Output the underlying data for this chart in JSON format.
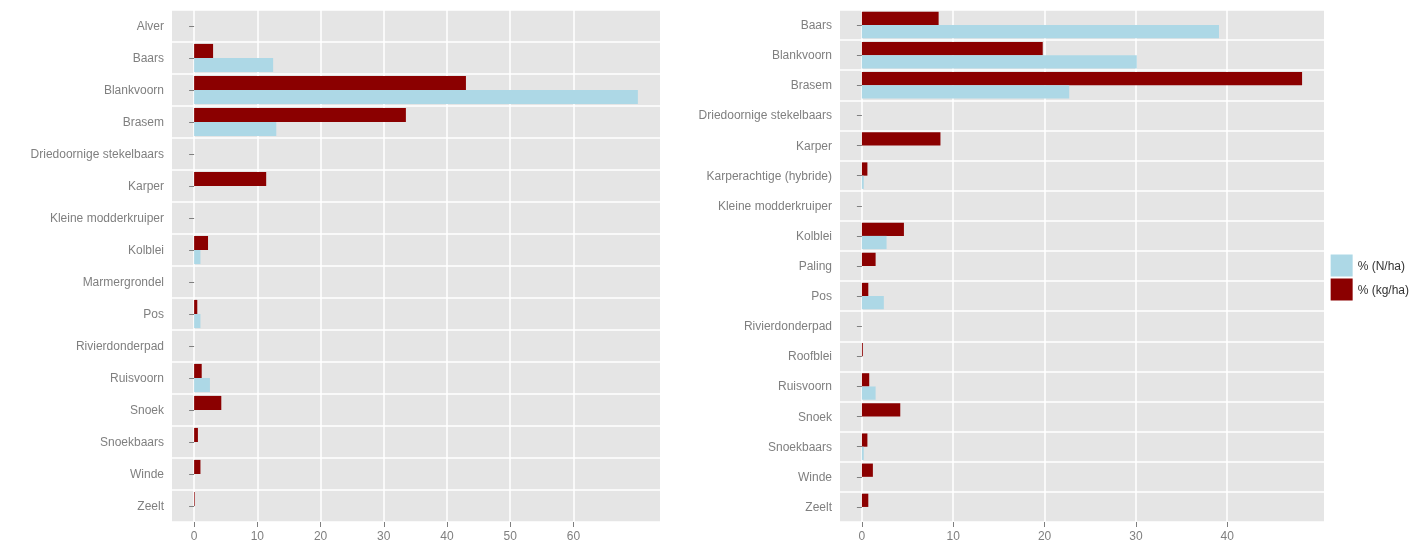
{
  "chart_data": [
    {
      "type": "bar",
      "orientation": "horizontal",
      "categories": [
        "Alver",
        "Baars",
        "Blankvoorn",
        "Brasem",
        "Driedoornige stekelbaars",
        "Karper",
        "Kleine modderkruiper",
        "Kolblei",
        "Marmergrondel",
        "Pos",
        "Rivierdonderpad",
        "Ruisvoorn",
        "Snoek",
        "Snoekbaars",
        "Winde",
        "Zeelt"
      ],
      "series": [
        {
          "color": "#add8e6",
          "values": [
            null,
            12.5,
            70.2,
            13.0,
            null,
            null,
            null,
            1.0,
            null,
            1.0,
            null,
            2.5,
            null,
            null,
            null,
            null
          ]
        },
        {
          "color": "#8b0000",
          "values": [
            null,
            3.0,
            43.0,
            33.5,
            null,
            11.4,
            null,
            2.2,
            null,
            0.5,
            null,
            1.2,
            4.3,
            0.6,
            1.0,
            0.1
          ]
        }
      ],
      "xlim": [
        -3.5,
        73.7
      ],
      "xticks": [
        0,
        10,
        20,
        30,
        40,
        50,
        60
      ],
      "grid": true,
      "legend": false
    },
    {
      "type": "bar",
      "orientation": "horizontal",
      "categories": [
        "Baars",
        "Blankvoorn",
        "Brasem",
        "Driedoornige stekelbaars",
        "Karper",
        "Karperachtige (hybride)",
        "Kleine modderkruiper",
        "Kolblei",
        "Paling",
        "Pos",
        "Rivierdonderpad",
        "Roofblei",
        "Ruisvoorn",
        "Snoek",
        "Snoekbaars",
        "Winde",
        "Zeelt"
      ],
      "series": [
        {
          "name": "% (N/ha)",
          "color": "#add8e6",
          "values": [
            39.1,
            30.1,
            22.7,
            null,
            null,
            0.2,
            null,
            2.7,
            null,
            2.4,
            null,
            null,
            1.5,
            null,
            0.2,
            null,
            null
          ]
        },
        {
          "name": "% (kg/ha)",
          "color": "#8b0000",
          "values": [
            8.4,
            19.8,
            48.2,
            null,
            8.6,
            0.6,
            null,
            4.6,
            1.5,
            0.7,
            null,
            0.1,
            0.8,
            4.2,
            0.6,
            1.2,
            0.7
          ]
        }
      ],
      "xlim": [
        -2.4,
        50.6
      ],
      "xticks": [
        0,
        10,
        20,
        30,
        40
      ],
      "grid": true,
      "legend": "right"
    }
  ]
}
